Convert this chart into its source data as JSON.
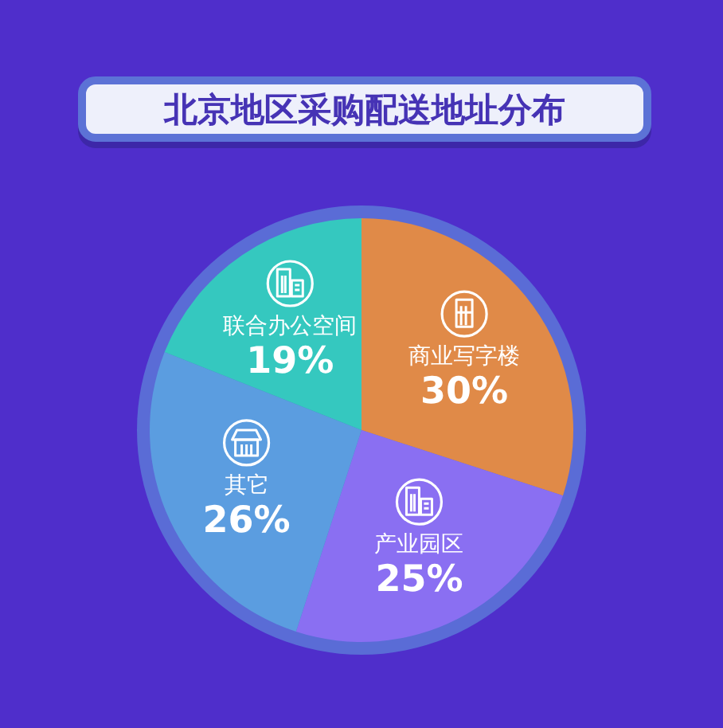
{
  "chart_data": {
    "type": "pie",
    "title": "北京地区采购配送地址分布",
    "categories": [
      "商业写字楼",
      "产业园区",
      "其它",
      "联合办公空间"
    ],
    "values": [
      30,
      25,
      26,
      19
    ],
    "value_labels": [
      "30%",
      "25%",
      "26%",
      "19%"
    ],
    "colors": [
      "#e08a48",
      "#8a6ff2",
      "#5b9de0",
      "#35c8bf"
    ]
  }
}
